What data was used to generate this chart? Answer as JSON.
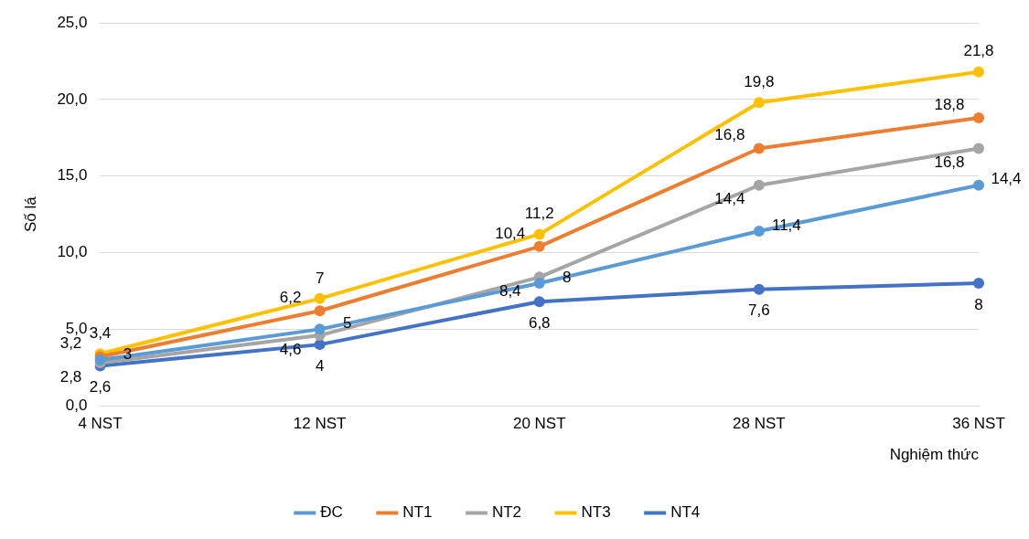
{
  "chart_data": {
    "type": "line",
    "xlabel": "Nghiệm thức",
    "ylabel": "Số lá",
    "categories": [
      "4 NST",
      "12 NST",
      "20 NST",
      "28 NST",
      "36 NST"
    ],
    "series": [
      {
        "name": "ĐC",
        "color": "#5b9bd5",
        "values": [
          3,
          5,
          8,
          11.4,
          14.4
        ],
        "value_labels": [
          "3",
          "5",
          "8",
          "11,4",
          "14,4"
        ]
      },
      {
        "name": "NT1",
        "color": "#ed7d31",
        "values": [
          3.2,
          6.2,
          10.4,
          16.8,
          18.8
        ],
        "value_labels": [
          "3,2",
          "6,2",
          "10,4",
          "16,8",
          "18,8"
        ]
      },
      {
        "name": "NT2",
        "color": "#a5a5a5",
        "values": [
          2.8,
          4.6,
          8.4,
          14.4,
          16.8
        ],
        "value_labels": [
          "2,8",
          "4,6",
          "8,4",
          "14,4",
          "16,8"
        ]
      },
      {
        "name": "NT3",
        "color": "#ffc000",
        "values": [
          3.4,
          7,
          11.2,
          19.8,
          21.8
        ],
        "value_labels": [
          "3,4",
          "7",
          "11,2",
          "19,8",
          "21,8"
        ]
      },
      {
        "name": "NT4",
        "color": "#4472c4",
        "values": [
          2.6,
          4,
          6.8,
          7.6,
          8
        ],
        "value_labels": [
          "2,6",
          "4",
          "6,8",
          "7,6",
          "8"
        ]
      }
    ],
    "ylim": [
      0,
      25
    ],
    "yticks": [
      {
        "value": 0,
        "label": "0,0"
      },
      {
        "value": 5,
        "label": "5,0"
      },
      {
        "value": 10,
        "label": "10,0"
      },
      {
        "value": 15,
        "label": "15,0"
      },
      {
        "value": 20,
        "label": "20,0"
      },
      {
        "value": 25,
        "label": "25,0"
      }
    ],
    "grid": "y",
    "legend": "bottom",
    "marker": "circle",
    "line_style": "solid"
  }
}
